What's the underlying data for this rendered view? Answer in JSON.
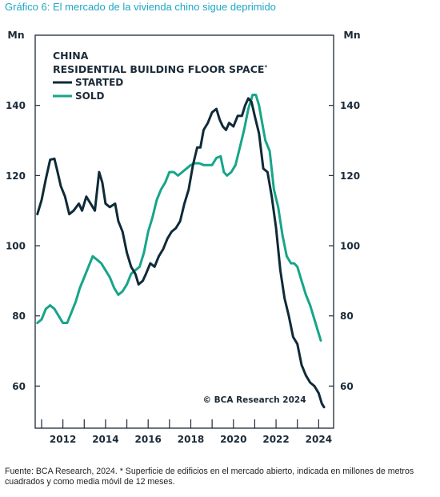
{
  "figure": {
    "title": "Gráfico 6: El mercado de la vivienda chino sigue deprimido",
    "footnote": "Fuente: BCA Research, 2024. * Superficie de edificios en el mercado abierto, indicada en millones de metros cuadrados y como media móvil de 12 meses."
  },
  "chart_data": {
    "type": "line",
    "legend_title_1": "CHINA",
    "legend_title_2": "RESIDENTIAL BUILDING FLOOR SPACE",
    "legend_title_2_sup": "*",
    "y_unit_left": "Mn",
    "y_unit_right": "Mn",
    "copyright": "© BCA Research 2024",
    "ylim": [
      48,
      160
    ],
    "xlim": [
      2010.7,
      2024.7
    ],
    "y_ticks": [
      60,
      80,
      100,
      120,
      140
    ],
    "x_ticks": [
      "2012",
      "2014",
      "2016",
      "2018",
      "2020",
      "2022",
      "2024"
    ],
    "colors": {
      "started": "#0f2a38",
      "sold": "#17a589",
      "axis": "#1b2a38"
    },
    "legend_placement": "top-left",
    "grid": false,
    "series": [
      {
        "name": "STARTED",
        "color": "#0f2a38",
        "points": [
          [
            2010.8,
            109
          ],
          [
            2011.0,
            113
          ],
          [
            2011.2,
            119
          ],
          [
            2011.4,
            124.5
          ],
          [
            2011.6,
            124.8
          ],
          [
            2011.75,
            121
          ],
          [
            2011.9,
            117
          ],
          [
            2012.1,
            114
          ],
          [
            2012.3,
            109
          ],
          [
            2012.5,
            110
          ],
          [
            2012.75,
            112
          ],
          [
            2012.9,
            110
          ],
          [
            2013.1,
            114
          ],
          [
            2013.3,
            112
          ],
          [
            2013.5,
            110
          ],
          [
            2013.7,
            121
          ],
          [
            2013.85,
            118
          ],
          [
            2014.0,
            112
          ],
          [
            2014.2,
            111
          ],
          [
            2014.45,
            112
          ],
          [
            2014.6,
            107
          ],
          [
            2014.8,
            104
          ],
          [
            2015.0,
            98
          ],
          [
            2015.2,
            94
          ],
          [
            2015.4,
            92
          ],
          [
            2015.55,
            89
          ],
          [
            2015.75,
            90
          ],
          [
            2015.9,
            92
          ],
          [
            2016.1,
            95
          ],
          [
            2016.3,
            94
          ],
          [
            2016.5,
            97
          ],
          [
            2016.7,
            99
          ],
          [
            2016.9,
            102
          ],
          [
            2017.1,
            104
          ],
          [
            2017.3,
            105
          ],
          [
            2017.5,
            107
          ],
          [
            2017.7,
            112
          ],
          [
            2017.9,
            116
          ],
          [
            2018.1,
            123
          ],
          [
            2018.3,
            128
          ],
          [
            2018.45,
            128
          ],
          [
            2018.6,
            133
          ],
          [
            2018.8,
            135
          ],
          [
            2019.0,
            138
          ],
          [
            2019.2,
            139
          ],
          [
            2019.35,
            136
          ],
          [
            2019.5,
            134
          ],
          [
            2019.65,
            133
          ],
          [
            2019.8,
            135
          ],
          [
            2020.0,
            134
          ],
          [
            2020.2,
            137
          ],
          [
            2020.4,
            137
          ],
          [
            2020.55,
            140
          ],
          [
            2020.7,
            142
          ],
          [
            2020.85,
            141
          ],
          [
            2021.0,
            137
          ],
          [
            2021.2,
            132
          ],
          [
            2021.4,
            122
          ],
          [
            2021.6,
            121
          ],
          [
            2021.8,
            114
          ],
          [
            2022.0,
            105
          ],
          [
            2022.2,
            93
          ],
          [
            2022.4,
            85
          ],
          [
            2022.6,
            80
          ],
          [
            2022.8,
            74
          ],
          [
            2023.0,
            72
          ],
          [
            2023.2,
            66
          ],
          [
            2023.4,
            63
          ],
          [
            2023.6,
            61
          ],
          [
            2023.8,
            60
          ],
          [
            2024.0,
            58
          ],
          [
            2024.15,
            55
          ],
          [
            2024.25,
            54
          ]
        ]
      },
      {
        "name": "SOLD",
        "color": "#17a589",
        "points": [
          [
            2010.8,
            78
          ],
          [
            2011.0,
            79
          ],
          [
            2011.2,
            82
          ],
          [
            2011.4,
            83
          ],
          [
            2011.6,
            82
          ],
          [
            2011.8,
            80
          ],
          [
            2012.0,
            78
          ],
          [
            2012.2,
            78
          ],
          [
            2012.4,
            81
          ],
          [
            2012.6,
            84
          ],
          [
            2012.8,
            88
          ],
          [
            2013.0,
            91
          ],
          [
            2013.2,
            94
          ],
          [
            2013.4,
            97
          ],
          [
            2013.6,
            96
          ],
          [
            2013.8,
            95
          ],
          [
            2014.0,
            93
          ],
          [
            2014.2,
            91
          ],
          [
            2014.4,
            88
          ],
          [
            2014.6,
            86
          ],
          [
            2014.8,
            87
          ],
          [
            2015.0,
            89
          ],
          [
            2015.2,
            92
          ],
          [
            2015.4,
            93
          ],
          [
            2015.6,
            94
          ],
          [
            2015.8,
            98
          ],
          [
            2016.0,
            104
          ],
          [
            2016.2,
            108
          ],
          [
            2016.4,
            113
          ],
          [
            2016.6,
            116
          ],
          [
            2016.8,
            118
          ],
          [
            2017.0,
            121
          ],
          [
            2017.2,
            121
          ],
          [
            2017.4,
            120
          ],
          [
            2017.6,
            121
          ],
          [
            2017.8,
            122
          ],
          [
            2018.0,
            123
          ],
          [
            2018.2,
            123.5
          ],
          [
            2018.4,
            123.5
          ],
          [
            2018.6,
            123
          ],
          [
            2018.8,
            123
          ],
          [
            2019.0,
            123
          ],
          [
            2019.2,
            125
          ],
          [
            2019.4,
            125.5
          ],
          [
            2019.55,
            121
          ],
          [
            2019.7,
            120
          ],
          [
            2019.9,
            121
          ],
          [
            2020.1,
            123
          ],
          [
            2020.3,
            128
          ],
          [
            2020.5,
            133
          ],
          [
            2020.7,
            139
          ],
          [
            2020.9,
            143
          ],
          [
            2021.05,
            143
          ],
          [
            2021.2,
            140
          ],
          [
            2021.35,
            135
          ],
          [
            2021.5,
            130
          ],
          [
            2021.7,
            127
          ],
          [
            2021.9,
            116
          ],
          [
            2022.1,
            111
          ],
          [
            2022.3,
            103
          ],
          [
            2022.5,
            97
          ],
          [
            2022.7,
            95
          ],
          [
            2022.85,
            95
          ],
          [
            2023.0,
            94
          ],
          [
            2023.2,
            90
          ],
          [
            2023.4,
            86
          ],
          [
            2023.6,
            83
          ],
          [
            2023.8,
            79
          ],
          [
            2024.0,
            75
          ],
          [
            2024.1,
            73
          ]
        ]
      }
    ]
  }
}
